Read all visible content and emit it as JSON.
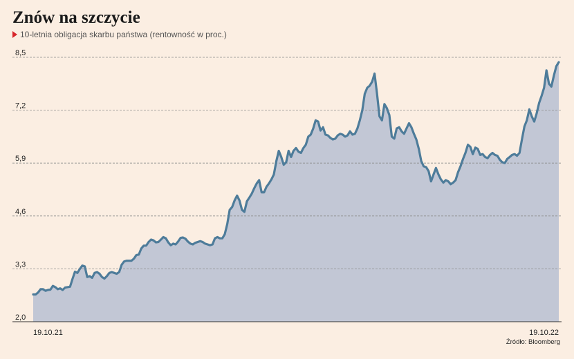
{
  "title": "Znów na szczycie",
  "subtitle": "10-letnia obligacja skarbu państwa (rentowność w proc.)",
  "source": "Źródło: Bloomberg",
  "colors": {
    "background": "#fbeee2",
    "line": "#4e7c9a",
    "area": "#c2c7d5",
    "grid": "#8a8a8a",
    "marker": "#d7262b"
  },
  "chart_data": {
    "type": "area",
    "title": "Znów na szczycie",
    "xlabel": "",
    "ylabel": "",
    "ylim": [
      2.0,
      8.5
    ],
    "yticks": [
      "8,5",
      "7,2",
      "5,9",
      "4,6",
      "3,3",
      "2,0"
    ],
    "ytick_values": [
      8.5,
      7.2,
      5.9,
      4.6,
      3.3,
      2.0
    ],
    "xticks": [
      "19.10.21",
      "19.10.22"
    ],
    "grid": true,
    "series": [
      {
        "values": [
          2.67,
          2.67,
          2.72,
          2.8,
          2.8,
          2.76,
          2.78,
          2.79,
          2.88,
          2.85,
          2.8,
          2.82,
          2.78,
          2.84,
          2.85,
          2.86,
          3.05,
          3.23,
          3.2,
          3.3,
          3.38,
          3.36,
          3.1,
          3.12,
          3.08,
          3.2,
          3.22,
          3.18,
          3.1,
          3.06,
          3.12,
          3.2,
          3.22,
          3.2,
          3.18,
          3.22,
          3.4,
          3.48,
          3.5,
          3.5,
          3.5,
          3.55,
          3.64,
          3.65,
          3.8,
          3.87,
          3.87,
          3.96,
          4.02,
          4.0,
          3.95,
          3.96,
          4.02,
          4.08,
          4.05,
          3.95,
          3.88,
          3.92,
          3.9,
          3.97,
          4.06,
          4.07,
          4.04,
          3.97,
          3.92,
          3.9,
          3.94,
          3.96,
          3.98,
          3.96,
          3.92,
          3.9,
          3.88,
          3.9,
          4.05,
          4.08,
          4.05,
          4.05,
          4.15,
          4.4,
          4.75,
          4.82,
          4.98,
          5.1,
          4.98,
          4.75,
          4.7,
          4.96,
          5.05,
          5.15,
          5.28,
          5.4,
          5.48,
          5.18,
          5.18,
          5.32,
          5.4,
          5.5,
          5.62,
          5.95,
          6.2,
          6.05,
          5.86,
          5.92,
          6.2,
          6.05,
          6.2,
          6.27,
          6.18,
          6.15,
          6.27,
          6.35,
          6.55,
          6.6,
          6.75,
          6.95,
          6.92,
          6.7,
          6.78,
          6.6,
          6.58,
          6.52,
          6.48,
          6.5,
          6.58,
          6.62,
          6.6,
          6.55,
          6.58,
          6.68,
          6.6,
          6.62,
          6.75,
          6.95,
          7.2,
          7.6,
          7.75,
          7.8,
          7.9,
          8.1,
          7.6,
          7.05,
          6.95,
          7.35,
          7.25,
          7.08,
          6.55,
          6.5,
          6.75,
          6.78,
          6.68,
          6.62,
          6.75,
          6.88,
          6.78,
          6.62,
          6.48,
          6.25,
          5.95,
          5.82,
          5.8,
          5.7,
          5.45,
          5.62,
          5.78,
          5.62,
          5.5,
          5.42,
          5.48,
          5.45,
          5.38,
          5.42,
          5.48,
          5.68,
          5.82,
          6.0,
          6.15,
          6.35,
          6.3,
          6.12,
          6.28,
          6.25,
          6.1,
          6.12,
          6.05,
          6.02,
          6.1,
          6.15,
          6.1,
          6.08,
          5.98,
          5.92,
          5.9,
          6.0,
          6.05,
          6.1,
          6.12,
          6.08,
          6.15,
          6.48,
          6.8,
          6.95,
          7.22,
          7.05,
          6.92,
          7.12,
          7.38,
          7.55,
          7.75,
          8.18,
          7.85,
          7.78,
          8.05,
          8.28,
          8.38
        ]
      }
    ]
  }
}
